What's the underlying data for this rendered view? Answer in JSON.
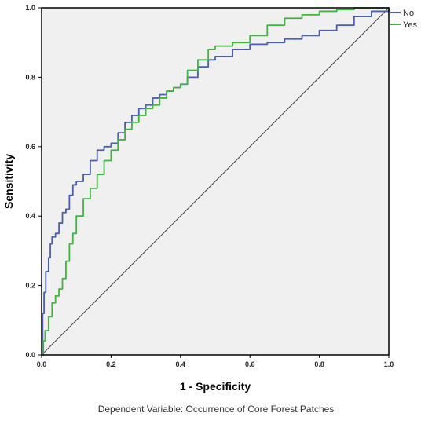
{
  "chart_data": {
    "type": "line",
    "title": "",
    "xlabel": "1 - Specificity",
    "ylabel": "Sensitivity",
    "caption": "Dependent Variable: Occurrence of Core Forest Patches",
    "xlim": [
      0,
      1
    ],
    "ylim": [
      0,
      1
    ],
    "x_ticks": [
      "0.0",
      "0.2",
      "0.4",
      "0.6",
      "0.8",
      "1.0"
    ],
    "y_ticks": [
      "0.0",
      "0.2",
      "0.4",
      "0.6",
      "0.8",
      "1.0"
    ],
    "grid": false,
    "legend_position": "top-right",
    "reference_line": {
      "x": [
        0,
        1
      ],
      "y": [
        0,
        1
      ],
      "color": "#444444"
    },
    "series": [
      {
        "name": "No",
        "color": "#4a5fae",
        "x": [
          0,
          0.003,
          0.007,
          0.012,
          0.02,
          0.025,
          0.03,
          0.04,
          0.05,
          0.06,
          0.07,
          0.08,
          0.09,
          0.1,
          0.12,
          0.14,
          0.16,
          0.18,
          0.2,
          0.22,
          0.24,
          0.26,
          0.28,
          0.3,
          0.32,
          0.34,
          0.36,
          0.38,
          0.4,
          0.42,
          0.45,
          0.48,
          0.5,
          0.55,
          0.6,
          0.65,
          0.7,
          0.75,
          0.8,
          0.85,
          0.9,
          0.95,
          1.0
        ],
        "y": [
          0,
          0.12,
          0.18,
          0.24,
          0.28,
          0.32,
          0.34,
          0.35,
          0.38,
          0.41,
          0.42,
          0.46,
          0.49,
          0.5,
          0.52,
          0.56,
          0.59,
          0.6,
          0.61,
          0.64,
          0.67,
          0.69,
          0.71,
          0.72,
          0.74,
          0.75,
          0.76,
          0.77,
          0.78,
          0.8,
          0.83,
          0.85,
          0.86,
          0.88,
          0.895,
          0.9,
          0.91,
          0.92,
          0.935,
          0.95,
          0.975,
          0.99,
          1.0
        ]
      },
      {
        "name": "Yes",
        "color": "#3fb540",
        "x": [
          0,
          0.005,
          0.01,
          0.02,
          0.03,
          0.04,
          0.05,
          0.06,
          0.07,
          0.08,
          0.09,
          0.1,
          0.12,
          0.14,
          0.16,
          0.18,
          0.2,
          0.22,
          0.24,
          0.26,
          0.28,
          0.3,
          0.32,
          0.34,
          0.36,
          0.38,
          0.4,
          0.42,
          0.45,
          0.48,
          0.5,
          0.55,
          0.6,
          0.65,
          0.7,
          0.75,
          0.8,
          0.85,
          0.9,
          0.95,
          1.0
        ],
        "y": [
          0,
          0.04,
          0.07,
          0.11,
          0.15,
          0.17,
          0.19,
          0.22,
          0.27,
          0.32,
          0.35,
          0.4,
          0.45,
          0.48,
          0.52,
          0.56,
          0.59,
          0.62,
          0.65,
          0.67,
          0.69,
          0.71,
          0.72,
          0.74,
          0.76,
          0.77,
          0.78,
          0.82,
          0.85,
          0.88,
          0.89,
          0.9,
          0.92,
          0.95,
          0.97,
          0.98,
          0.99,
          0.995,
          1.0,
          1.0,
          1.0
        ]
      }
    ]
  }
}
